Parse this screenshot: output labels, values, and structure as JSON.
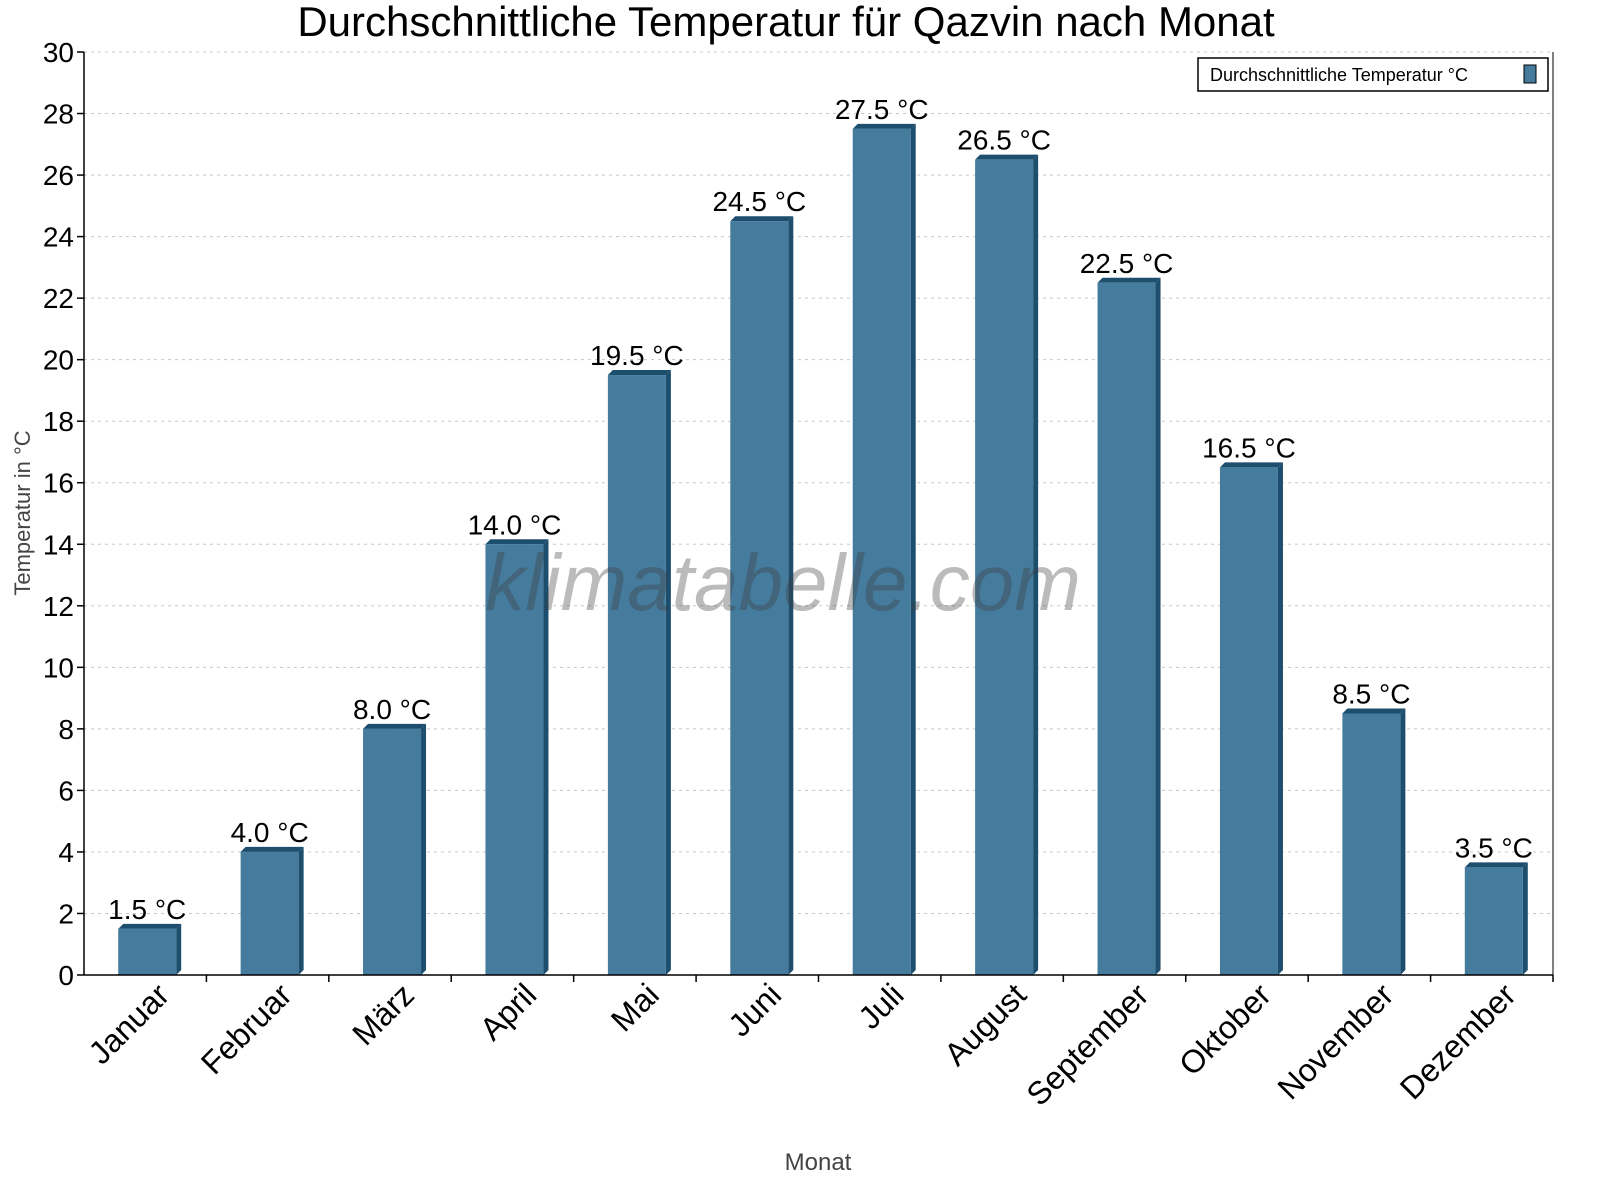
{
  "chart_data": {
    "type": "bar",
    "title": "Durchschnittliche Temperatur für Qazvin nach Monat",
    "xlabel": "Monat",
    "ylabel": "Temperatur in °C",
    "categories": [
      "Januar",
      "Februar",
      "März",
      "April",
      "Mai",
      "Juni",
      "Juli",
      "August",
      "September",
      "Oktober",
      "November",
      "Dezember"
    ],
    "series": [
      {
        "name": "Durchschnittliche Temperatur °C",
        "values": [
          1.5,
          4.0,
          8.0,
          14.0,
          19.5,
          24.5,
          27.5,
          26.5,
          22.5,
          16.5,
          8.5,
          3.5
        ]
      }
    ],
    "data_label_suffix": " °C",
    "ylim": [
      0,
      30
    ],
    "yticks": [
      0,
      2,
      4,
      6,
      8,
      10,
      12,
      14,
      16,
      18,
      20,
      22,
      24,
      26,
      28,
      30
    ],
    "grid": true,
    "legend_position": "top-right",
    "colors": {
      "bar": "#457b9d",
      "bar_side": "#1d4e6e",
      "grid": "#c8c8c8"
    }
  },
  "watermark": "klimatabelle.com"
}
